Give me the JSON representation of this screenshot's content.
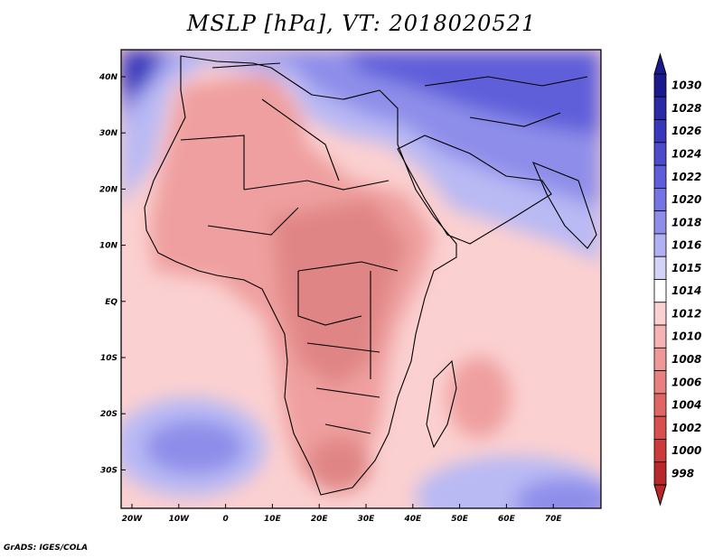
{
  "title": "MSLP [hPa], VT: 2018020521",
  "credit": "GrADS: IGES/COLA",
  "map": {
    "lon_ticks": [
      "20W",
      "10W",
      "0",
      "10E",
      "20E",
      "30E",
      "40E",
      "50E",
      "60E",
      "70E"
    ],
    "lat_ticks": [
      "40N",
      "30N",
      "20N",
      "10N",
      "EQ",
      "10S",
      "20S",
      "30S"
    ],
    "colors": {
      "high_deep": "#3b3bbd",
      "high_mid": "#7d7de6",
      "high_light": "#b9b9f4",
      "neutral": "#ffffff",
      "low_light": "#fbd0d0",
      "low_mid": "#ef9f9f",
      "low_deep": "#d97777",
      "border": "#000000"
    }
  },
  "colorbar": {
    "labels": [
      "1030",
      "1028",
      "1026",
      "1024",
      "1022",
      "1020",
      "1018",
      "1016",
      "1015",
      "1014",
      "1012",
      "1010",
      "1008",
      "1006",
      "1004",
      "1002",
      "1000",
      "998"
    ],
    "colors": [
      "#1a1a8c",
      "#2a2aa6",
      "#3838bb",
      "#4b4bcc",
      "#5e5eda",
      "#7474e3",
      "#8e8eea",
      "#b0b0f2",
      "#d3d3f8",
      "#ffffff",
      "#fbd0d0",
      "#f6b3b3",
      "#ef9898",
      "#e88080",
      "#e06666",
      "#d84f4f",
      "#cc3a3a",
      "#b82828"
    ]
  }
}
